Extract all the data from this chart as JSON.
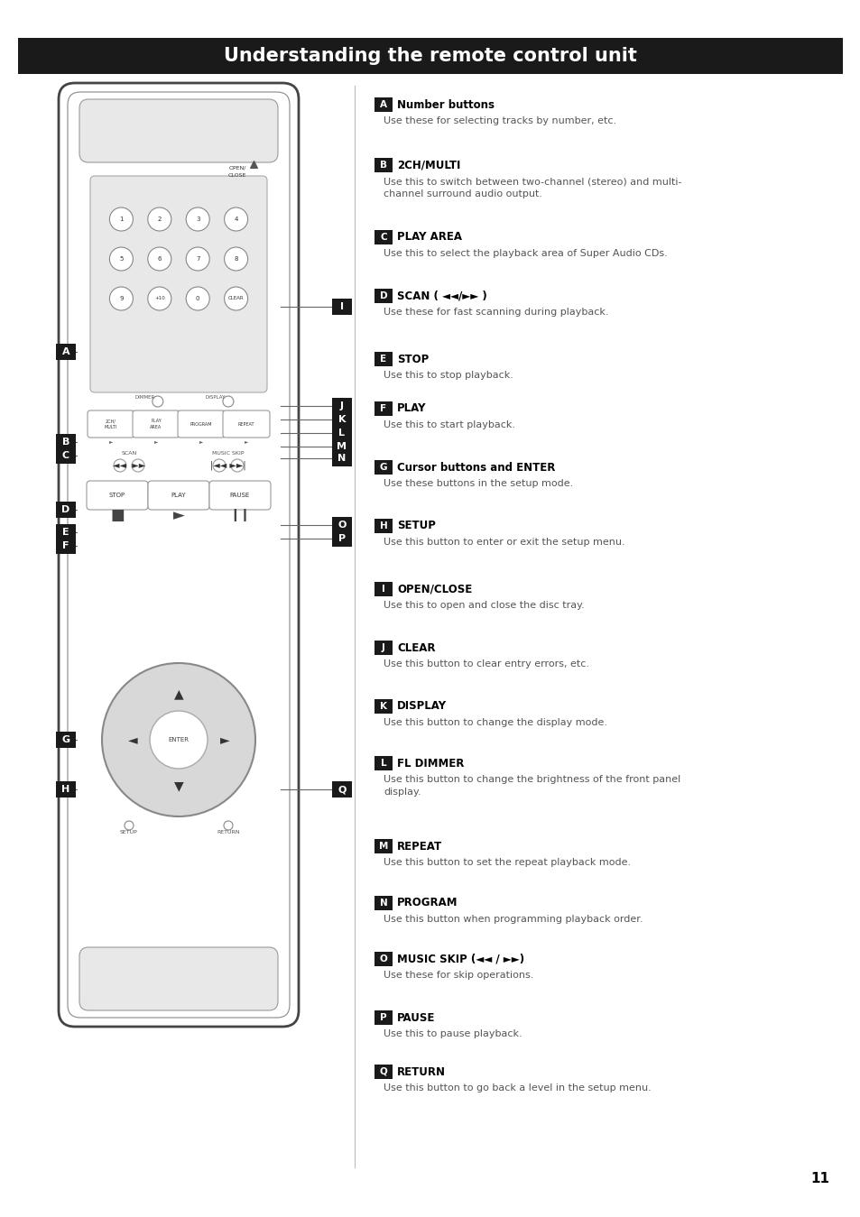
{
  "title": "Understanding the remote control unit",
  "title_bg": "#1a1a1a",
  "title_color": "#ffffff",
  "page_number": "11",
  "entries": [
    {
      "label": "A",
      "heading": "Number buttons",
      "body": "Use these for selecting tracks by number, etc."
    },
    {
      "label": "B",
      "heading": "2CH/MULTI",
      "body": "Use this to switch between two-channel (stereo) and multi-\nchannel surround audio output."
    },
    {
      "label": "C",
      "heading": "PLAY AREA",
      "body": "Use this to select the playback area of Super Audio CDs."
    },
    {
      "label": "D",
      "heading": "SCAN ( ◄◄/►► )",
      "body": "Use these for fast scanning during playback."
    },
    {
      "label": "E",
      "heading": "STOP",
      "body": "Use this to stop playback."
    },
    {
      "label": "F",
      "heading": "PLAY",
      "body": "Use this to start playback."
    },
    {
      "label": "G",
      "heading": "Cursor buttons and ENTER",
      "body": "Use these buttons in the setup mode."
    },
    {
      "label": "H",
      "heading": "SETUP",
      "body": "Use this button to enter or exit the setup menu."
    },
    {
      "label": "I",
      "heading": "OPEN/CLOSE",
      "body": "Use this to open and close the disc tray."
    },
    {
      "label": "J",
      "heading": "CLEAR",
      "body": "Use this button to clear entry errors, etc."
    },
    {
      "label": "K",
      "heading": "DISPLAY",
      "body": "Use this button to change the display mode."
    },
    {
      "label": "L",
      "heading": "FL DIMMER",
      "body": "Use this button to change the brightness of the front panel\ndisplay."
    },
    {
      "label": "M",
      "heading": "REPEAT",
      "body": "Use this button to set the repeat playback mode."
    },
    {
      "label": "N",
      "heading": "PROGRAM",
      "body": "Use this button when programming playback order."
    },
    {
      "label": "O",
      "heading": "MUSIC SKIP (◄◄ / ►►)",
      "body": "Use these for skip operations."
    },
    {
      "label": "P",
      "heading": "PAUSE",
      "body": "Use this to pause playback."
    },
    {
      "label": "Q",
      "heading": "RETURN",
      "body": "Use this button to go back a level in the setup menu."
    }
  ]
}
